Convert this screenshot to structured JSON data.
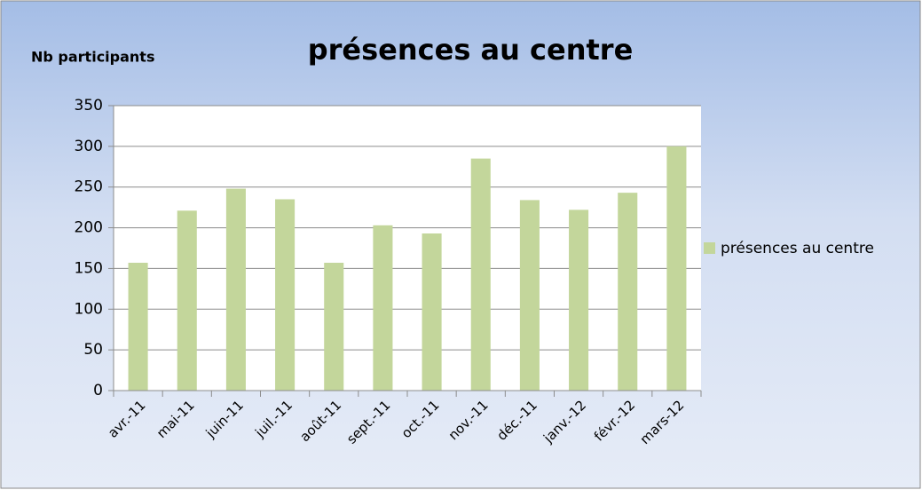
{
  "chart_data": {
    "type": "bar",
    "title": "présences au centre",
    "y_label": "Nb participants",
    "categories": [
      "avr.-11",
      "mai-11",
      "juin-11",
      "juil.-11",
      "août-11",
      "sept.-11",
      "oct.-11",
      "nov.-11",
      "déc.-11",
      "janv.-12",
      "févr.-12",
      "mars-12"
    ],
    "series": [
      {
        "name": "présences au centre",
        "color": "#c3d69b",
        "values": [
          157,
          221,
          248,
          235,
          157,
          203,
          193,
          285,
          234,
          222,
          243,
          300
        ]
      }
    ],
    "ylim": [
      0,
      350
    ],
    "yticks": [
      0,
      50,
      100,
      150,
      200,
      250,
      300,
      350
    ],
    "grid": true,
    "legend": "right"
  }
}
